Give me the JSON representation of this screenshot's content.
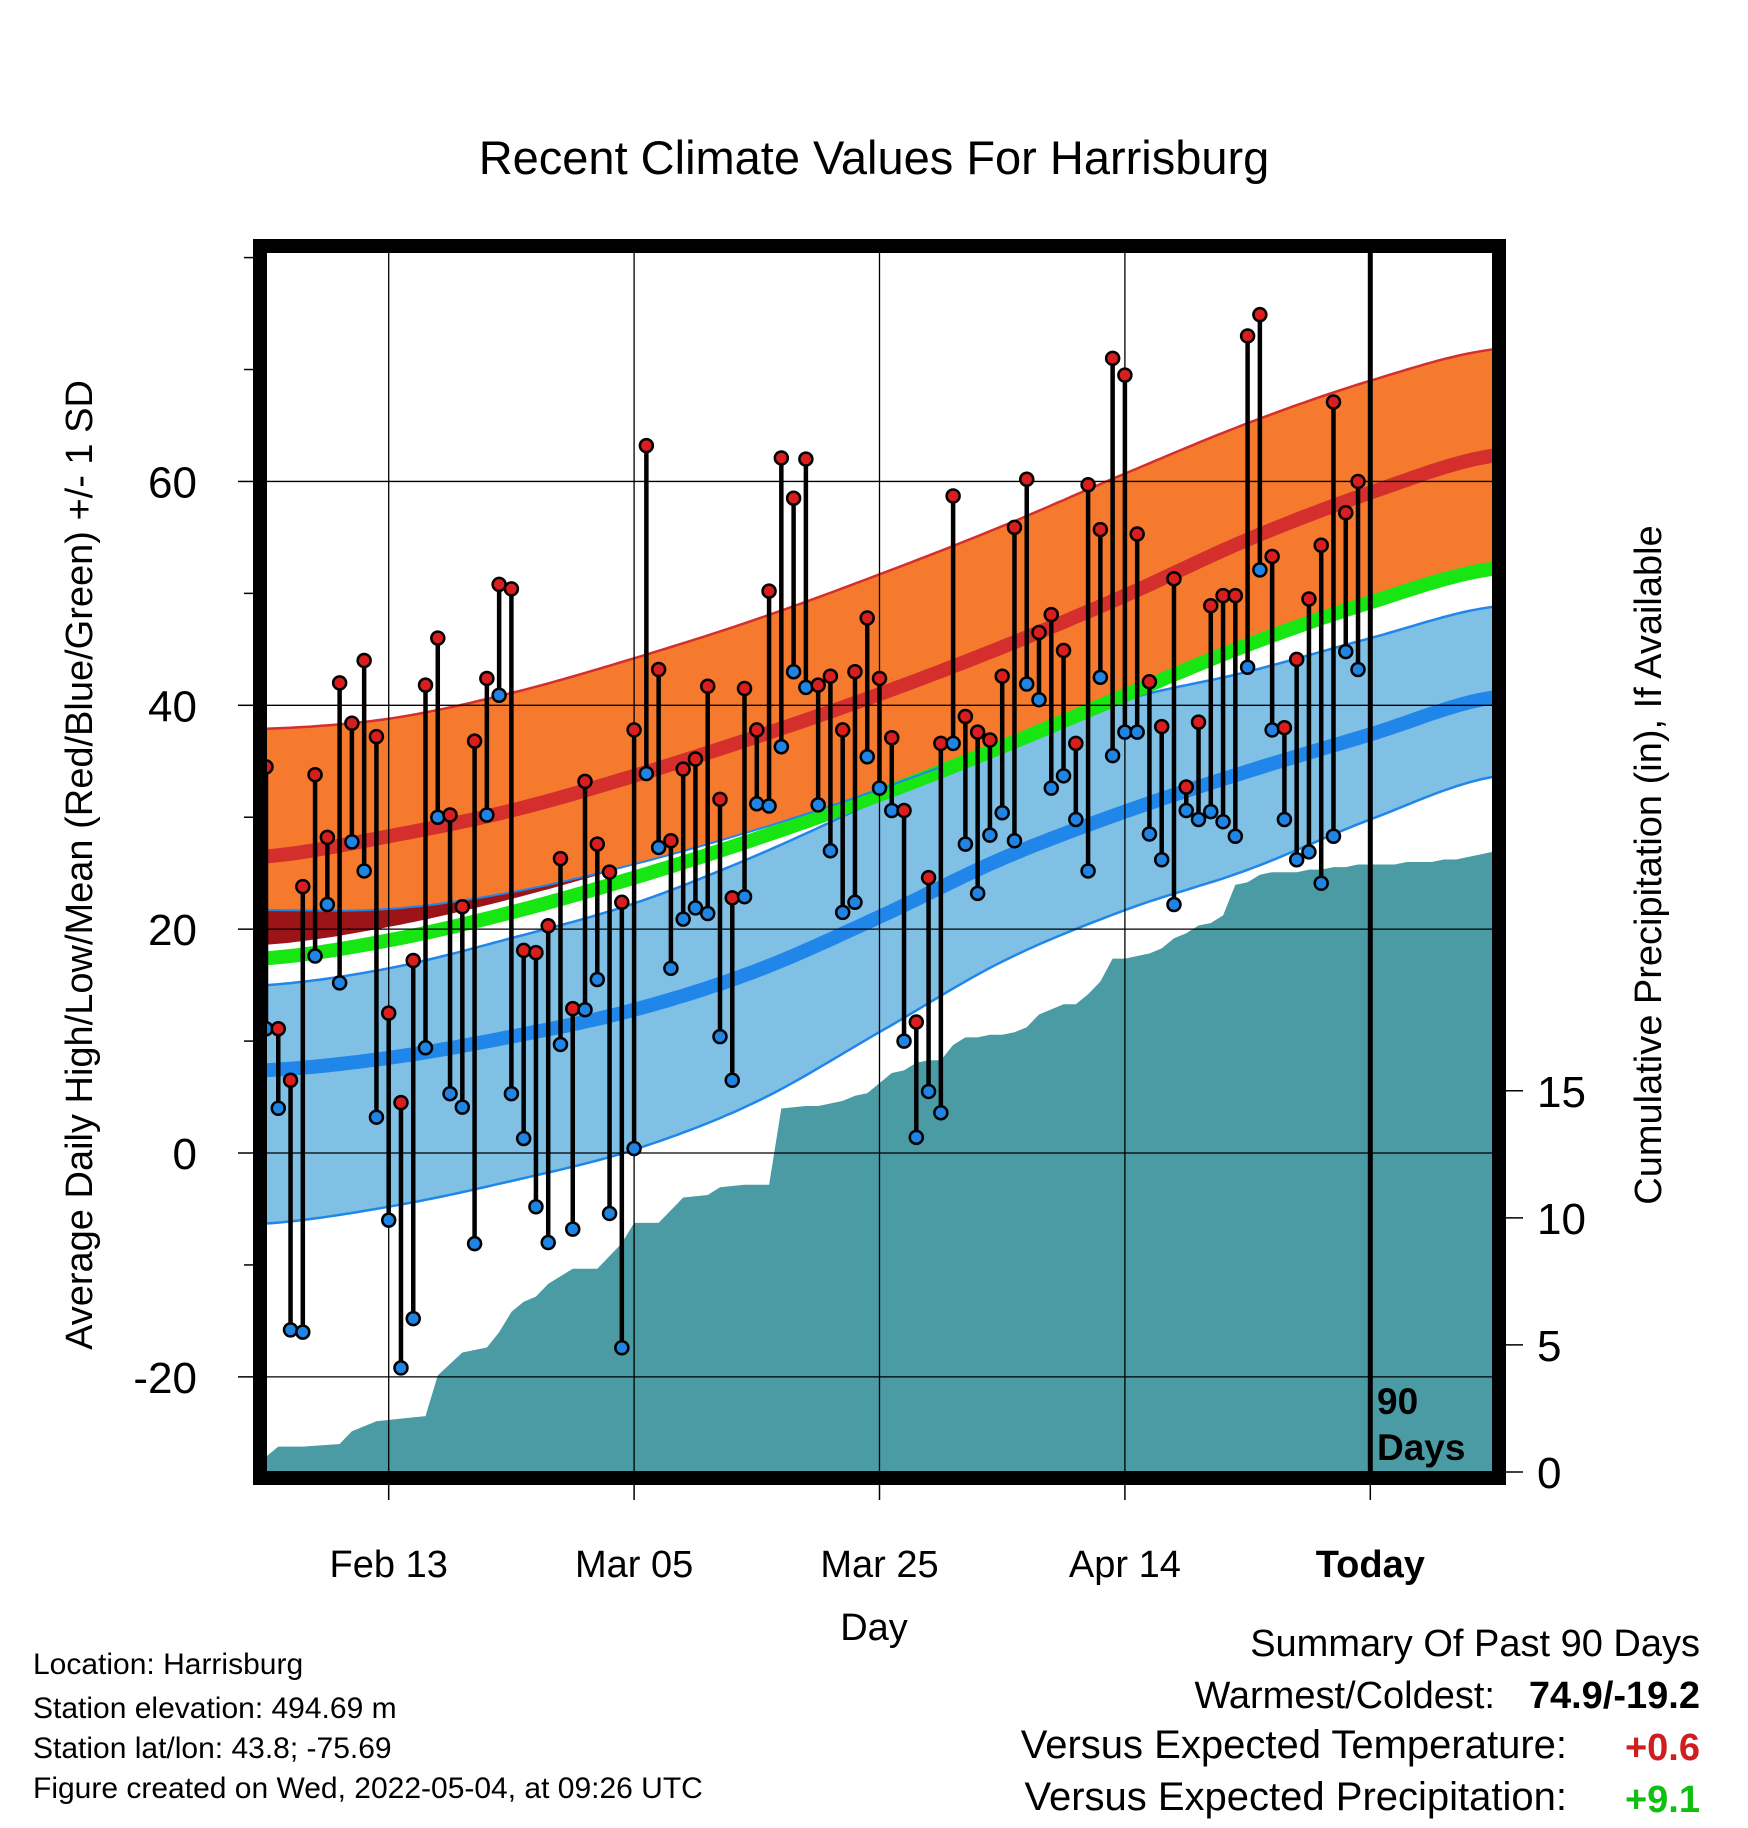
{
  "chart_data": {
    "type": "line",
    "title": "Recent Climate Values For Harrisburg",
    "xlabel": "Day",
    "ylabel": "Average Daily High/Low/Mean (Red/Blue/Green) +/- 1 SD",
    "y2label": "Cumulative Precipitation (in), If Available",
    "x_tick_labels": [
      "Feb 13",
      "Mar 05",
      "Mar 25",
      "Apr 14",
      "Today"
    ],
    "x_tick_days": [
      10,
      30,
      50,
      70,
      90
    ],
    "xlim": [
      0,
      100
    ],
    "ylim": [
      -28.5,
      80.5
    ],
    "y_ticks": [
      -20,
      0,
      20,
      40,
      60
    ],
    "y2lim": [
      0,
      48
    ],
    "y2_ticks": [
      0,
      5,
      10,
      15
    ],
    "today_day": 90,
    "today_annotation": [
      "90",
      "Days"
    ],
    "grid": true,
    "normal_high_mean": [
      [
        0,
        26.5
      ],
      [
        10,
        28.3
      ],
      [
        20,
        30.6
      ],
      [
        30,
        33.7
      ],
      [
        40,
        37.2
      ],
      [
        50,
        41.0
      ],
      [
        60,
        45.2
      ],
      [
        70,
        49.8
      ],
      [
        80,
        54.8
      ],
      [
        90,
        59.0
      ],
      [
        100,
        62.3
      ]
    ],
    "normal_high_upper": [
      [
        0,
        37.9
      ],
      [
        10,
        38.8
      ],
      [
        20,
        41.1
      ],
      [
        30,
        44.2
      ],
      [
        40,
        47.7
      ],
      [
        50,
        51.7
      ],
      [
        60,
        56.0
      ],
      [
        70,
        60.7
      ],
      [
        80,
        65.2
      ],
      [
        90,
        69.0
      ],
      [
        100,
        71.8
      ]
    ],
    "normal_high_lower": [
      [
        0,
        21.7
      ],
      [
        10,
        21.8
      ],
      [
        20,
        23.3
      ],
      [
        30,
        25.8
      ],
      [
        40,
        28.9
      ],
      [
        50,
        32.5
      ],
      [
        60,
        36.6
      ],
      [
        70,
        41.0
      ],
      [
        80,
        45.2
      ],
      [
        90,
        48.8
      ],
      [
        100,
        51.6
      ]
    ],
    "normal_mean": [
      [
        0,
        17.4
      ],
      [
        10,
        19.0
      ],
      [
        20,
        21.5
      ],
      [
        30,
        24.6
      ],
      [
        40,
        28.1
      ],
      [
        50,
        32.0
      ],
      [
        60,
        36.3
      ],
      [
        70,
        40.9
      ],
      [
        80,
        45.4
      ],
      [
        90,
        49.2
      ],
      [
        100,
        52.2
      ]
    ],
    "normal_low_mean": [
      [
        0,
        7.4
      ],
      [
        10,
        8.5
      ],
      [
        20,
        10.4
      ],
      [
        30,
        12.8
      ],
      [
        40,
        16.3
      ],
      [
        50,
        21.1
      ],
      [
        60,
        26.3
      ],
      [
        70,
        30.5
      ],
      [
        80,
        34.1
      ],
      [
        90,
        37.4
      ],
      [
        100,
        40.7
      ]
    ],
    "normal_low_upper": [
      [
        0,
        15.0
      ],
      [
        10,
        16.5
      ],
      [
        20,
        19.2
      ],
      [
        30,
        22.3
      ],
      [
        40,
        26.6
      ],
      [
        50,
        31.6
      ],
      [
        60,
        36.7
      ],
      [
        70,
        40.5
      ],
      [
        80,
        43.0
      ],
      [
        90,
        46.0
      ],
      [
        100,
        48.8
      ]
    ],
    "normal_low_lower": [
      [
        0,
        -6.3
      ],
      [
        10,
        -4.8
      ],
      [
        20,
        -2.5
      ],
      [
        30,
        0.3
      ],
      [
        40,
        4.6
      ],
      [
        50,
        10.8
      ],
      [
        60,
        17.1
      ],
      [
        70,
        21.7
      ],
      [
        80,
        25.3
      ],
      [
        90,
        29.8
      ],
      [
        100,
        33.6
      ]
    ],
    "daily_high": [
      34.5,
      11.1,
      6.5,
      23.8,
      33.8,
      28.2,
      42.0,
      38.4,
      44.0,
      37.2,
      12.5,
      4.5,
      17.2,
      41.8,
      46.0,
      30.2,
      22.0,
      36.8,
      42.4,
      50.8,
      50.4,
      18.1,
      17.9,
      20.3,
      26.3,
      12.9,
      33.2,
      27.6,
      25.1,
      22.4,
      37.8,
      63.2,
      43.2,
      27.9,
      34.3,
      35.2,
      41.7,
      31.6,
      22.8,
      41.5,
      37.8,
      50.2,
      62.1,
      58.5,
      62.0,
      41.8,
      42.6,
      37.8,
      43.0,
      47.8,
      42.4,
      37.1,
      30.6,
      11.7,
      24.6,
      36.6,
      58.7,
      39.0,
      37.6,
      36.9,
      42.6,
      55.9,
      60.2,
      46.5,
      48.1,
      44.9,
      36.6,
      59.7,
      55.7,
      71.0,
      69.5,
      55.3,
      42.1,
      38.1,
      51.3,
      32.7,
      38.5,
      48.9,
      49.8,
      49.8,
      73.0,
      74.9,
      53.3,
      38.0,
      44.1,
      49.5,
      54.3,
      67.1,
      57.2,
      60.0
    ],
    "daily_low": [
      11.1,
      4.0,
      -15.8,
      -16.0,
      17.6,
      22.2,
      15.2,
      27.8,
      25.2,
      3.2,
      -6.0,
      -19.2,
      -14.8,
      9.4,
      30.0,
      5.3,
      4.1,
      -8.1,
      30.2,
      40.9,
      5.3,
      1.3,
      -4.8,
      -8.0,
      9.7,
      -6.8,
      12.8,
      15.5,
      -5.4,
      -17.4,
      0.4,
      33.9,
      27.3,
      16.5,
      20.9,
      21.9,
      21.4,
      10.4,
      6.5,
      22.9,
      31.2,
      31.0,
      36.3,
      43.0,
      41.6,
      31.1,
      27.0,
      21.5,
      22.4,
      35.4,
      32.6,
      30.6,
      10.0,
      1.4,
      5.5,
      3.6,
      36.6,
      27.6,
      23.2,
      28.4,
      30.4,
      27.9,
      41.9,
      40.5,
      32.6,
      33.7,
      29.8,
      25.2,
      42.5,
      35.5,
      37.6,
      37.6,
      28.5,
      26.2,
      22.2,
      30.6,
      29.8,
      30.5,
      29.6,
      28.3,
      43.4,
      52.1,
      37.8,
      29.8,
      26.2,
      26.9,
      24.1,
      28.3,
      44.8,
      43.2
    ],
    "precip_cumulative": [
      [
        0,
        0.6
      ],
      [
        1,
        1.0
      ],
      [
        3,
        1.0
      ],
      [
        6,
        1.1
      ],
      [
        7,
        1.6
      ],
      [
        9,
        2.0
      ],
      [
        11,
        2.1
      ],
      [
        13,
        2.2
      ],
      [
        14,
        3.8
      ],
      [
        16,
        4.7
      ],
      [
        18,
        4.9
      ],
      [
        19,
        5.5
      ],
      [
        20,
        6.3
      ],
      [
        21,
        6.7
      ],
      [
        22,
        6.9
      ],
      [
        23,
        7.4
      ],
      [
        24,
        7.7
      ],
      [
        25,
        8.0
      ],
      [
        27,
        8.0
      ],
      [
        28,
        8.5
      ],
      [
        29,
        9.0
      ],
      [
        30,
        9.8
      ],
      [
        32,
        9.8
      ],
      [
        33,
        10.3
      ],
      [
        34,
        10.8
      ],
      [
        36,
        10.9
      ],
      [
        37,
        11.2
      ],
      [
        39,
        11.3
      ],
      [
        41,
        11.3
      ],
      [
        42,
        14.3
      ],
      [
        44,
        14.4
      ],
      [
        45,
        14.4
      ],
      [
        46,
        14.5
      ],
      [
        47,
        14.6
      ],
      [
        48,
        14.8
      ],
      [
        49,
        14.9
      ],
      [
        50,
        15.3
      ],
      [
        51,
        15.7
      ],
      [
        52,
        15.8
      ],
      [
        53,
        16.1
      ],
      [
        54,
        16.2
      ],
      [
        55,
        16.2
      ],
      [
        56,
        16.8
      ],
      [
        57,
        17.1
      ],
      [
        58,
        17.1
      ],
      [
        59,
        17.2
      ],
      [
        60,
        17.2
      ],
      [
        61,
        17.3
      ],
      [
        62,
        17.5
      ],
      [
        63,
        18.0
      ],
      [
        65,
        18.4
      ],
      [
        66,
        18.4
      ],
      [
        67,
        18.8
      ],
      [
        68,
        19.3
      ],
      [
        69,
        20.2
      ],
      [
        70,
        20.2
      ],
      [
        71,
        20.3
      ],
      [
        72,
        20.4
      ],
      [
        73,
        20.6
      ],
      [
        74,
        21.0
      ],
      [
        75,
        21.2
      ],
      [
        76,
        21.5
      ],
      [
        77,
        21.6
      ],
      [
        78,
        21.9
      ],
      [
        79,
        23.1
      ],
      [
        80,
        23.2
      ],
      [
        81,
        23.5
      ],
      [
        82,
        23.6
      ],
      [
        83,
        23.6
      ],
      [
        84,
        23.6
      ],
      [
        85,
        23.7
      ],
      [
        86,
        23.7
      ],
      [
        87,
        23.8
      ],
      [
        88,
        23.8
      ],
      [
        89,
        23.9
      ],
      [
        90,
        23.9
      ],
      [
        91,
        23.9
      ],
      [
        92,
        23.9
      ],
      [
        93,
        24.0
      ],
      [
        94,
        24.0
      ],
      [
        95,
        24.0
      ],
      [
        96,
        24.1
      ],
      [
        97,
        24.1
      ],
      [
        98,
        24.2
      ],
      [
        99,
        24.3
      ],
      [
        100,
        24.4
      ]
    ],
    "colors": {
      "high_band": "#f57a2e",
      "high_mean": "#d42f2d",
      "high_mean_dark": "#9c1318",
      "mean": "#18e612",
      "low_band": "#80c0e5",
      "low_mean": "#2186ea",
      "precip": "#4a9ba3",
      "high_marker": "#d81e1e",
      "low_marker": "#1f84e3"
    }
  },
  "footer": {
    "location": "Location: Harrisburg",
    "elevation": "Station elevation: 494.69 m",
    "latlon": "Station lat/lon: 43.8; -75.69",
    "created": "Figure created on Wed, 2022-05-04, at 09:26 UTC"
  },
  "summary": {
    "heading": "Summary Of Past 90 Days",
    "warmest_label": "Warmest/Coldest:",
    "warmest_value": "74.9/-19.2",
    "temp_label": "Versus Expected Temperature:",
    "temp_value": "+0.6",
    "temp_color": "#d01e1e",
    "precip_label": "Versus Expected Precipitation:",
    "precip_value": "+9.1",
    "precip_color": "#10c010"
  }
}
